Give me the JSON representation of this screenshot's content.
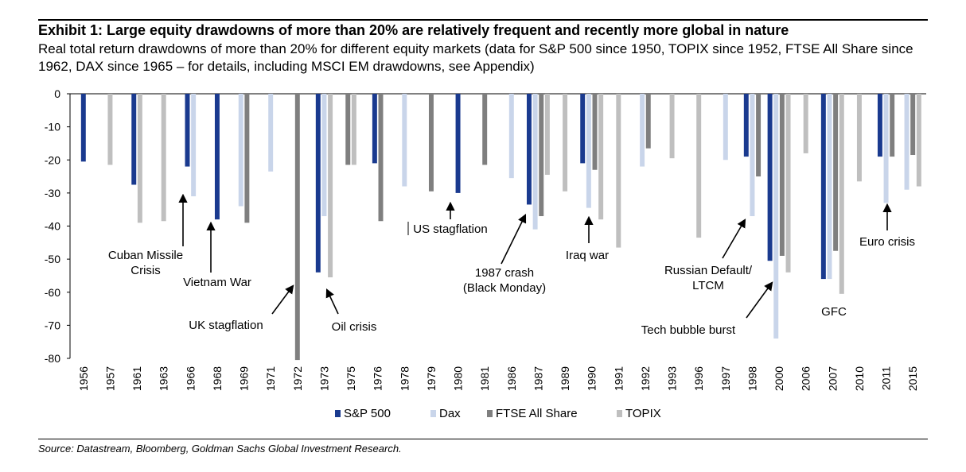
{
  "header": {
    "title": "Exhibit 1: Large equity drawdowns of more than 20% are relatively frequent and recently more global in nature",
    "subtitle": "Real total return drawdowns of more than 20% for different equity markets (data for S&P 500 since 1950, TOPIX since 1952, FTSE All Share since 1962, DAX since 1965 – for details, including MSCI EM drawdowns, see Appendix)"
  },
  "footer": {
    "source": "Source: Datastream, Bloomberg, Goldman Sachs Global Investment Research."
  },
  "colors": {
    "sp500": "#1a3a8f",
    "dax": "#c9d5ea",
    "ftse": "#7f7f7f",
    "topix": "#bfbfbf"
  },
  "chart_data": {
    "type": "bar",
    "title": "",
    "xlabel": "",
    "ylabel": "",
    "ylim": [
      -80,
      0
    ],
    "yticks": [
      "0",
      "-10",
      "-20",
      "-30",
      "-40",
      "-50",
      "-60",
      "-70",
      "-80"
    ],
    "legend_position": "bottom",
    "categories": [
      "1956",
      "1957",
      "1961",
      "1963",
      "1966",
      "1968",
      "1969",
      "1971",
      "1972",
      "1973",
      "1975",
      "1976",
      "1978",
      "1979",
      "1980",
      "1981",
      "1986",
      "1987",
      "1989",
      "1990",
      "1991",
      "1992",
      "1993",
      "1996",
      "1997",
      "1998",
      "2000",
      "2006",
      "2007",
      "2010",
      "2011",
      "2015"
    ],
    "series": [
      {
        "name": "S&P 500",
        "color": "#1a3a8f",
        "points": [
          {
            "category": "1956",
            "value": -20.5
          },
          {
            "category": "1961",
            "value": -27.5
          },
          {
            "category": "1966",
            "value": -22
          },
          {
            "category": "1968",
            "value": -38
          },
          {
            "category": "1973",
            "value": -54
          },
          {
            "category": "1976",
            "value": -21
          },
          {
            "category": "1980",
            "value": -30
          },
          {
            "category": "1987",
            "value": -33.5
          },
          {
            "category": "1990",
            "value": -21
          },
          {
            "category": "1998",
            "value": -19
          },
          {
            "category": "2000",
            "value": -50.5
          },
          {
            "category": "2007",
            "value": -56
          },
          {
            "category": "2011",
            "value": -19
          }
        ]
      },
      {
        "name": "Dax",
        "color": "#c9d5ea",
        "points": [
          {
            "category": "1966",
            "value": -31
          },
          {
            "category": "1969",
            "value": -34
          },
          {
            "category": "1971",
            "value": -23.5
          },
          {
            "category": "1973",
            "value": -37
          },
          {
            "category": "1978",
            "value": -28
          },
          {
            "category": "1986",
            "value": -25.5
          },
          {
            "category": "1987",
            "value": -41
          },
          {
            "category": "1990",
            "value": -34.5
          },
          {
            "category": "1992",
            "value": -22
          },
          {
            "category": "1997",
            "value": -20
          },
          {
            "category": "1998",
            "value": -37
          },
          {
            "category": "2000",
            "value": -74
          },
          {
            "category": "2007",
            "value": -56
          },
          {
            "category": "2011",
            "value": -33
          },
          {
            "category": "2015",
            "value": -29
          }
        ]
      },
      {
        "name": "FTSE All Share",
        "color": "#7f7f7f",
        "points": [
          {
            "category": "1969",
            "value": -39
          },
          {
            "category": "1972",
            "value": -80.5
          },
          {
            "category": "1975",
            "value": -21.5
          },
          {
            "category": "1976",
            "value": -38.5
          },
          {
            "category": "1979",
            "value": -29.5
          },
          {
            "category": "1981",
            "value": -21.5
          },
          {
            "category": "1987",
            "value": -37
          },
          {
            "category": "1990",
            "value": -23
          },
          {
            "category": "1992",
            "value": -16.5
          },
          {
            "category": "1998",
            "value": -25
          },
          {
            "category": "2000",
            "value": -49
          },
          {
            "category": "2007",
            "value": -47.5
          },
          {
            "category": "2011",
            "value": -19
          },
          {
            "category": "2015",
            "value": -18.5
          }
        ]
      },
      {
        "name": "TOPIX",
        "color": "#bfbfbf",
        "points": [
          {
            "category": "1957",
            "value": -21.5
          },
          {
            "category": "1961",
            "value": -39
          },
          {
            "category": "1963",
            "value": -38.5
          },
          {
            "category": "1973",
            "value": -55.5
          },
          {
            "category": "1975",
            "value": -21.5
          },
          {
            "category": "1987",
            "value": -24.5
          },
          {
            "category": "1989",
            "value": -29.5
          },
          {
            "category": "1990",
            "value": -38
          },
          {
            "category": "1991",
            "value": -46.5
          },
          {
            "category": "1993",
            "value": -19.5
          },
          {
            "category": "1996",
            "value": -43.5
          },
          {
            "category": "2000",
            "value": -54
          },
          {
            "category": "2006",
            "value": -18
          },
          {
            "category": "2007",
            "value": -60.5
          },
          {
            "category": "2010",
            "value": -26.5
          },
          {
            "category": "2015",
            "value": -28
          }
        ]
      }
    ],
    "annotations": [
      {
        "text": "Cuban Missile",
        "text2": "Crisis",
        "category": "1966",
        "series": "S&P 500",
        "pointer": -22
      },
      {
        "text": "Vietnam War",
        "text2": "",
        "category": "1968",
        "series": "S&P 500",
        "pointer": -38
      },
      {
        "text": "UK stagflation",
        "text2": "",
        "category": "1972",
        "series": "FTSE All Share",
        "pointer": -57
      },
      {
        "text": "Oil crisis",
        "text2": "",
        "category": "1973",
        "series": "TOPIX",
        "pointer": -56
      },
      {
        "text": "US stagflation",
        "text2": "",
        "category": "1980",
        "series": "S&P 500",
        "pointer": -31
      },
      {
        "text": "1987 crash",
        "text2": "(Black Monday)",
        "category": "1987",
        "series": "S&P 500",
        "pointer": -37
      },
      {
        "text": "Iraq war",
        "text2": "",
        "category": "1990",
        "series": "S&P 500",
        "pointer": -37
      },
      {
        "text": "Russian Default/",
        "text2": "LTCM",
        "category": "1998",
        "series": "Dax",
        "pointer": -38
      },
      {
        "text": "Tech bubble burst",
        "text2": "",
        "category": "2000",
        "series": "S&P 500",
        "pointer": -56
      },
      {
        "text": "GFC",
        "text2": "",
        "category": "2007",
        "series": "TOPIX",
        "pointer": -999
      },
      {
        "text": "Euro crisis",
        "text2": "",
        "category": "2011",
        "series": "Dax",
        "pointer": -33
      }
    ]
  }
}
